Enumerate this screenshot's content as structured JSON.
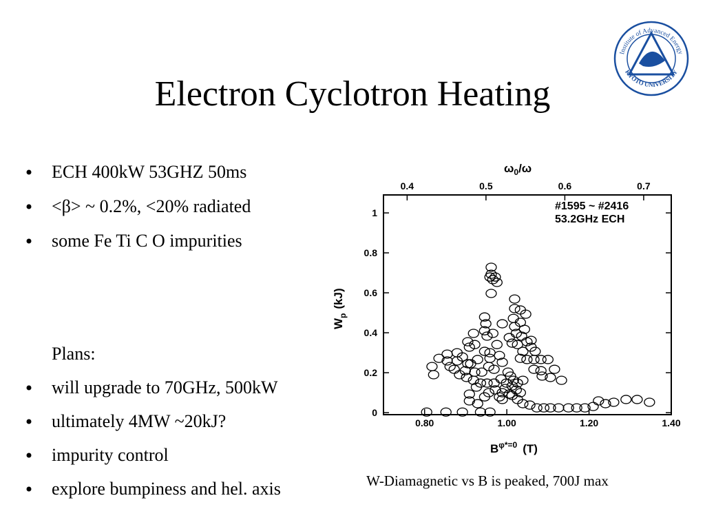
{
  "slide": {
    "title": "Electron Cyclotron Heating",
    "bullets": [
      "ECH 400kW 53GHZ 50ms",
      "<β> ~ 0.2%, <20% radiated",
      "some Fe Ti C O impurities"
    ],
    "plans_heading": "Plans:",
    "plans": [
      "will upgrade to 70GHz, 500kW",
      "ultimately 4MW ~20kJ?",
      "impurity control",
      "explore bumpiness and hel. axis"
    ],
    "caption": "W-Diamagnetic vs B is peaked, 700J max",
    "logo": {
      "top_text": "Institute of Advanced Energy",
      "bottom_text": "KYOTO UNIVERSITY"
    }
  },
  "chart_data": {
    "type": "scatter",
    "x_label": "B",
    "x_label_sup": "φ*=0",
    "x_label_unit": "(T)",
    "y_label": "W",
    "y_label_sub": "p",
    "y_label_unit": "(kJ)",
    "x2_label": "ω",
    "x2_label_sub": "0",
    "x2_label_rest": "/ω",
    "annotations": [
      "#1595 ~ #2416",
      "53.2GHz ECH"
    ],
    "color": "#000000",
    "x": [
      0.962,
      0.962,
      0.959,
      0.966,
      0.976,
      0.962,
      0.972,
      1.019,
      1.019,
      1.033,
      1.016,
      1.033,
      1.019,
      1.043,
      1.006,
      1.023,
      1.036,
      1.013,
      1.026,
      1.049,
      1.059,
      1.059,
      1.039,
      1.033,
      1.049,
      1.066,
      1.083,
      1.1,
      1.066,
      1.083,
      1.116,
      1.133,
      0.946,
      0.949,
      0.946,
      0.952,
      0.966,
      0.919,
      0.905,
      0.909,
      0.922,
      0.946,
      0.959,
      0.959,
      0.976,
      0.982,
      0.989,
      0.956,
      0.969,
      0.939,
      0.922,
      0.905,
      0.892,
      0.879,
      0.855,
      0.835,
      0.818,
      0.822,
      0.855,
      0.872,
      0.885,
      0.902,
      0.919,
      0.936,
      0.952,
      0.969,
      0.986,
      1.003,
      1.009,
      0.999,
      1.013,
      1.023,
      1.006,
      0.989,
      0.972,
      0.956,
      0.946,
      0.926,
      0.909,
      0.909,
      0.929,
      0.892,
      0.852,
      0.805,
      0.959,
      0.936,
      0.989,
      1.013,
      1.033,
      1.026,
      1.039,
      1.056,
      1.073,
      1.09,
      1.106,
      1.126,
      1.15,
      1.17,
      1.19,
      1.21,
      1.223,
      1.24,
      1.26,
      1.29,
      1.317,
      1.347,
      1.039,
      1.026,
      1.016,
      0.996,
      0.982,
      0.862,
      0.879,
      0.899,
      0.929,
      0.912,
      0.989,
      1.046,
      1.069,
      1.086,
      1.106
    ],
    "values": [
      0.728,
      0.693,
      0.679,
      0.666,
      0.652,
      0.597,
      0.679,
      0.569,
      0.521,
      0.514,
      0.472,
      0.452,
      0.431,
      0.417,
      0.376,
      0.397,
      0.383,
      0.348,
      0.341,
      0.355,
      0.362,
      0.328,
      0.307,
      0.272,
      0.266,
      0.266,
      0.266,
      0.266,
      0.217,
      0.21,
      0.217,
      0.162,
      0.479,
      0.445,
      0.41,
      0.383,
      0.397,
      0.397,
      0.355,
      0.328,
      0.341,
      0.307,
      0.272,
      0.3,
      0.341,
      0.286,
      0.252,
      0.231,
      0.217,
      0.203,
      0.203,
      0.245,
      0.279,
      0.3,
      0.293,
      0.272,
      0.231,
      0.19,
      0.259,
      0.217,
      0.19,
      0.176,
      0.162,
      0.148,
      0.148,
      0.148,
      0.169,
      0.203,
      0.183,
      0.148,
      0.134,
      0.114,
      0.093,
      0.1,
      0.114,
      0.1,
      0.079,
      0.128,
      0.093,
      0.059,
      0.045,
      0.003,
      0.003,
      0.003,
      0.003,
      0.003,
      0.066,
      0.086,
      0.1,
      0.066,
      0.045,
      0.038,
      0.024,
      0.024,
      0.024,
      0.024,
      0.024,
      0.024,
      0.024,
      0.031,
      0.059,
      0.045,
      0.052,
      0.066,
      0.066,
      0.052,
      0.162,
      0.148,
      0.162,
      0.121,
      0.079,
      0.231,
      0.259,
      0.21,
      0.266,
      0.245,
      0.445,
      0.493,
      0.307,
      0.183,
      0.176
    ],
    "xlim": [
      0.7,
      1.4
    ],
    "xticks": [
      {
        "value": 0.8,
        "label": "0.80"
      },
      {
        "value": 1.0,
        "label": "1.00"
      },
      {
        "value": 1.2,
        "label": "1.20"
      },
      {
        "value": 1.4,
        "label": "1.40"
      }
    ],
    "ylim": [
      -0.01,
      1.09
    ],
    "yticks": [
      0,
      0.2,
      0.4,
      0.6,
      0.8,
      1
    ],
    "x2lim": [
      0.37,
      0.735
    ],
    "x2ticks": [
      0.4,
      0.5,
      0.6,
      0.7
    ]
  }
}
